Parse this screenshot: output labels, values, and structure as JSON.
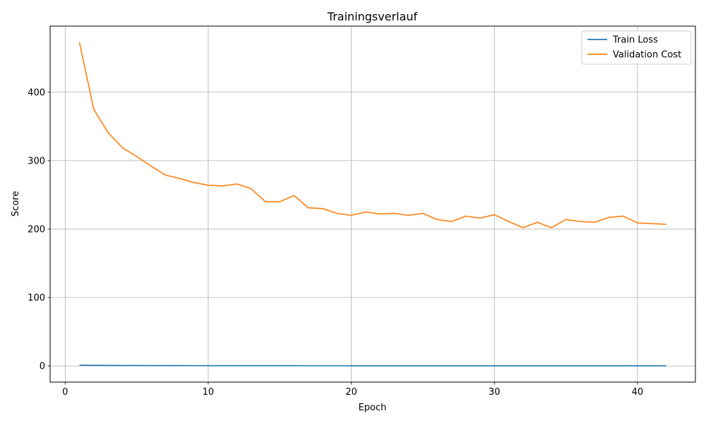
{
  "chart_data": {
    "type": "line",
    "title": "Trainingsverlauf",
    "xlabel": "Epoch",
    "ylabel": "Score",
    "xlim": [
      -1.05,
      44.05
    ],
    "ylim": [
      -23.6,
      496.6
    ],
    "xticks": [
      0,
      10,
      20,
      30,
      40
    ],
    "yticks": [
      0,
      100,
      200,
      300,
      400
    ],
    "grid": true,
    "legend_position": "top-right",
    "x": [
      1,
      2,
      3,
      4,
      5,
      6,
      7,
      8,
      9,
      10,
      11,
      12,
      13,
      14,
      15,
      16,
      17,
      18,
      19,
      20,
      21,
      22,
      23,
      24,
      25,
      26,
      27,
      28,
      29,
      30,
      31,
      32,
      33,
      34,
      35,
      36,
      37,
      38,
      39,
      40,
      41,
      42
    ],
    "series": [
      {
        "name": "Train Loss",
        "color": "#1f77b4",
        "values": [
          1.2,
          0.9,
          0.8,
          0.7,
          0.65,
          0.6,
          0.55,
          0.5,
          0.48,
          0.45,
          0.43,
          0.42,
          0.4,
          0.39,
          0.38,
          0.37,
          0.36,
          0.35,
          0.34,
          0.33,
          0.33,
          0.32,
          0.32,
          0.31,
          0.31,
          0.3,
          0.3,
          0.3,
          0.29,
          0.29,
          0.29,
          0.28,
          0.28,
          0.28,
          0.28,
          0.27,
          0.27,
          0.27,
          0.27,
          0.27,
          0.26,
          0.26
        ]
      },
      {
        "name": "Validation Cost",
        "color": "#ff7f0e",
        "values": [
          473,
          375,
          341,
          319,
          306,
          292,
          279,
          274,
          268,
          264,
          263,
          266,
          259,
          240,
          240,
          249,
          231,
          230,
          223,
          220,
          225,
          222,
          223,
          220,
          223,
          214,
          211,
          219,
          216,
          221,
          211,
          202,
          210,
          202,
          214,
          211,
          210,
          217,
          219,
          209,
          208,
          207
        ]
      }
    ]
  }
}
